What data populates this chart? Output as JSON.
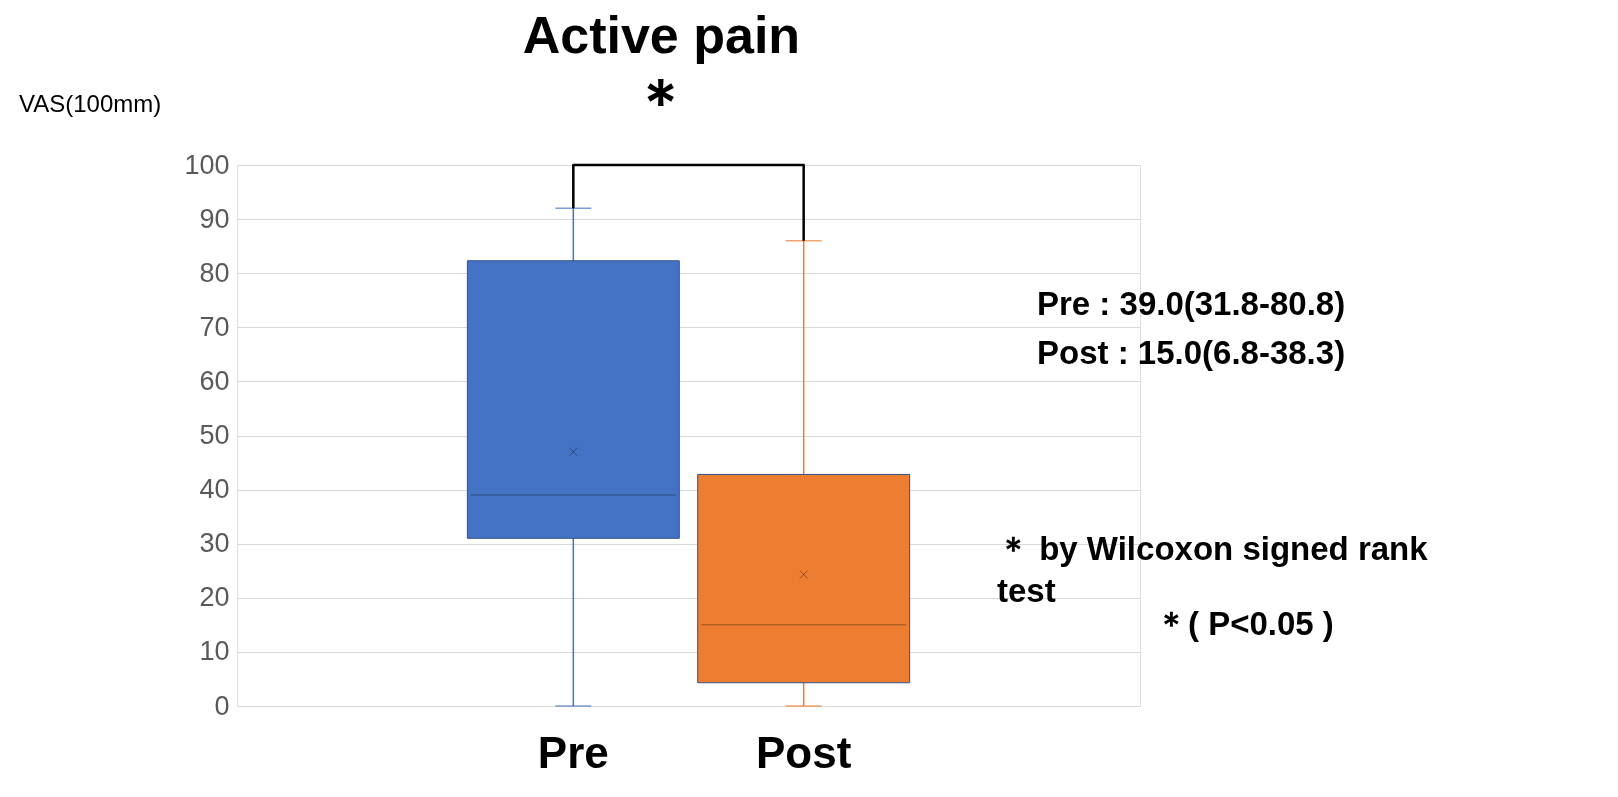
{
  "chart_data": {
    "type": "box",
    "title": "Active pain",
    "ylabel": "VAS(100mm)",
    "categories": [
      "Pre",
      "Post"
    ],
    "series": [
      {
        "color": "#4472c4",
        "boxes": [
          {
            "low": 0,
            "q1": 31,
            "median": 39,
            "q3": 82.3,
            "high": 92,
            "mean": 47
          },
          null
        ]
      },
      {
        "color": "#ed7d31",
        "boxes": [
          null,
          {
            "low": 0,
            "q1": 4.3,
            "median": 15,
            "q3": 42.8,
            "high": 86,
            "mean": 24.3
          }
        ]
      }
    ],
    "ylim": [
      0,
      100
    ],
    "yticks": [
      0,
      10,
      20,
      30,
      40,
      50,
      60,
      70,
      80,
      90,
      100
    ],
    "grid": "y",
    "annotations": [
      "＊",
      "Pre : 39.0(31.8-80.8)",
      "Post : 15.0(6.8-38.3)",
      "＊ by Wilcoxon signed rank test",
      "＊( P<0.05 )"
    ]
  }
}
